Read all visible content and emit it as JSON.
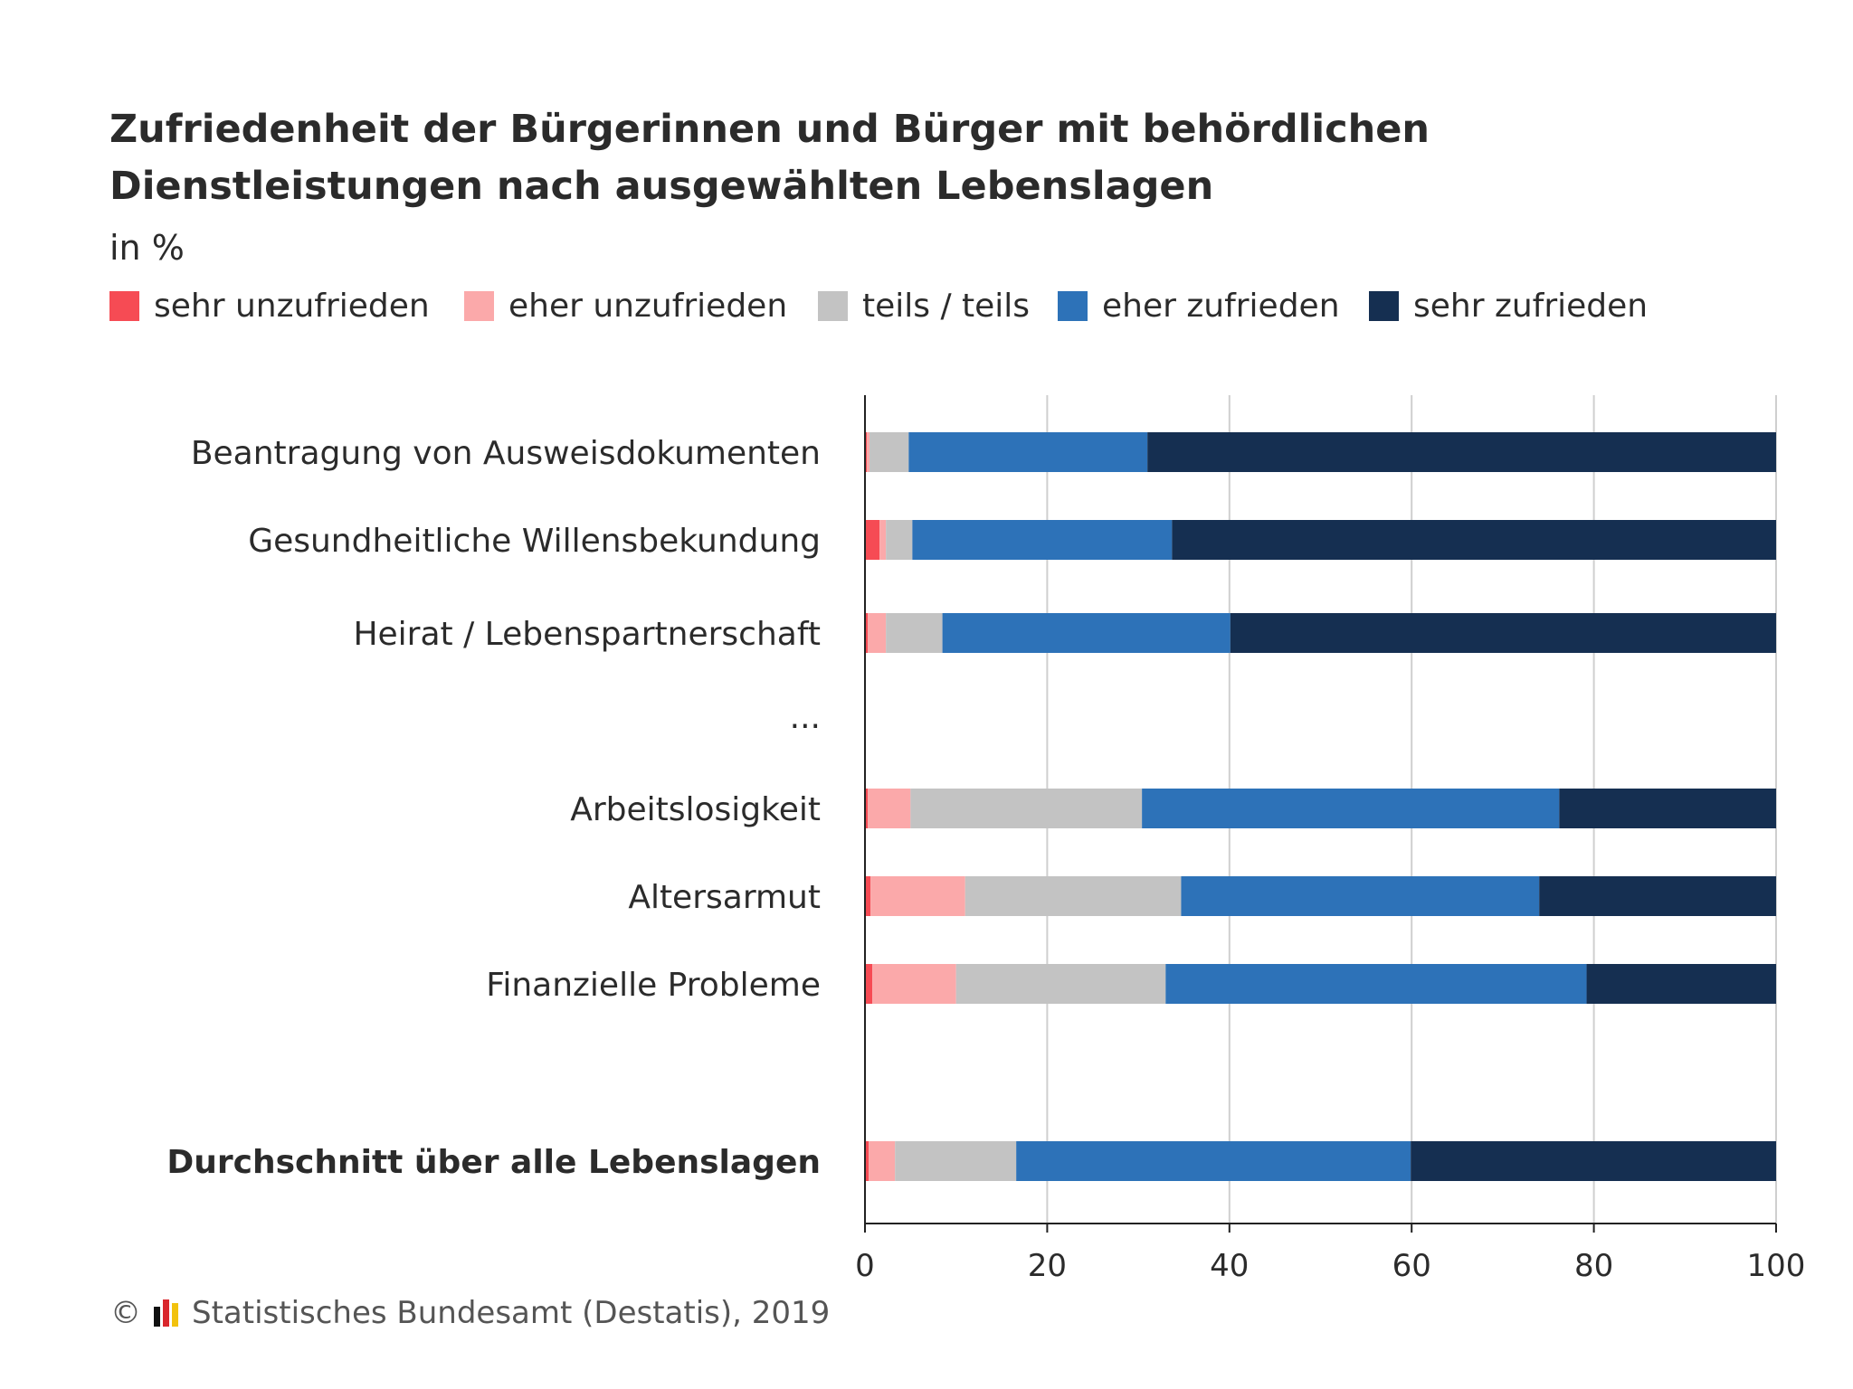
{
  "chart_data": {
    "type": "bar",
    "orientation": "horizontal",
    "stacked": true,
    "title": "Zufriedenheit der Bürgerinnen und Bürger mit behördlichen Dienstleistungen nach ausgewählten Lebenslagen",
    "unit_label": "in %",
    "xlim": [
      0,
      100
    ],
    "x_ticks": [
      "0",
      "20",
      "40",
      "60",
      "80",
      "100"
    ],
    "gap_label": "...",
    "categories": [
      "Beantragung von Ausweisdokumenten",
      "Gesundheitliche Willensbekundung",
      "Heirat / Lebenspartnerschaft",
      "Arbeitslosigkeit",
      "Altersarmut",
      "Finanzielle Probleme",
      "Durchschnitt über alle Lebenslagen"
    ],
    "bold_categories": [
      "Durchschnitt über alle Lebenslagen"
    ],
    "series": [
      {
        "name": "sehr unzufrieden",
        "color": "#f64b54",
        "values": [
          0.2,
          1.6,
          0.3,
          0.3,
          0.6,
          0.8,
          0.4
        ]
      },
      {
        "name": "eher unzufrieden",
        "color": "#fba9aa",
        "values": [
          0.3,
          0.7,
          2.0,
          4.7,
          10.4,
          9.2,
          2.9
        ]
      },
      {
        "name": "teils / teils",
        "color": "#c3c3c3",
        "values": [
          4.3,
          2.9,
          6.2,
          25.4,
          23.7,
          23.0,
          13.3
        ]
      },
      {
        "name": "eher zufrieden",
        "color": "#2d72b8",
        "values": [
          26.2,
          28.5,
          31.6,
          45.8,
          39.3,
          46.2,
          43.3
        ]
      },
      {
        "name": "sehr zufrieden",
        "color": "#152f51",
        "values": [
          69.0,
          66.3,
          59.9,
          23.8,
          26.0,
          20.8,
          40.1
        ]
      }
    ]
  },
  "footer": {
    "copyright": "©",
    "source": "Statistisches Bundesamt (Destatis), 2019"
  },
  "colors": {
    "grid": "#cfcfcf",
    "axis": "#222222",
    "logo": [
      "#111111",
      "#d9262c",
      "#f2c20e"
    ]
  }
}
